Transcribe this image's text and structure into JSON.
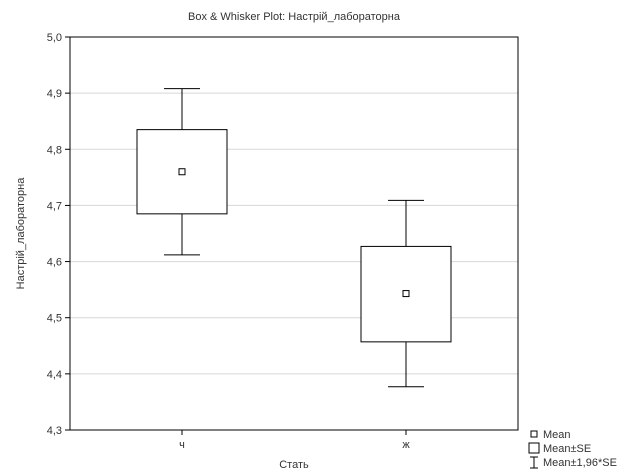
{
  "chart_data": {
    "type": "box",
    "title": "Box & Whisker Plot: Настрій_лабораторна",
    "xlabel": "Стать",
    "ylabel": "Настрій_лабораторна",
    "ylim": [
      4.3,
      5.0
    ],
    "yticks": [
      4.3,
      4.4,
      4.5,
      4.6,
      4.7,
      4.8,
      4.9,
      5.0
    ],
    "ytick_labels": [
      "4,3",
      "4,4",
      "4,5",
      "4,6",
      "4,7",
      "4,8",
      "4,9",
      "5,0"
    ],
    "grid": true,
    "categories": [
      "ч",
      "ж"
    ],
    "groups": [
      {
        "category": "ч",
        "mean": 4.76,
        "se_low": 4.685,
        "se_high": 4.835,
        "ci_low": 4.612,
        "ci_high": 4.908
      },
      {
        "category": "ж",
        "mean": 4.543,
        "se_low": 4.457,
        "se_high": 4.627,
        "ci_low": 4.377,
        "ci_high": 4.709
      }
    ],
    "legend": {
      "placement": "bottom-right",
      "entries": [
        "Mean",
        "Mean±SE",
        "Mean±1,96*SE"
      ]
    }
  }
}
